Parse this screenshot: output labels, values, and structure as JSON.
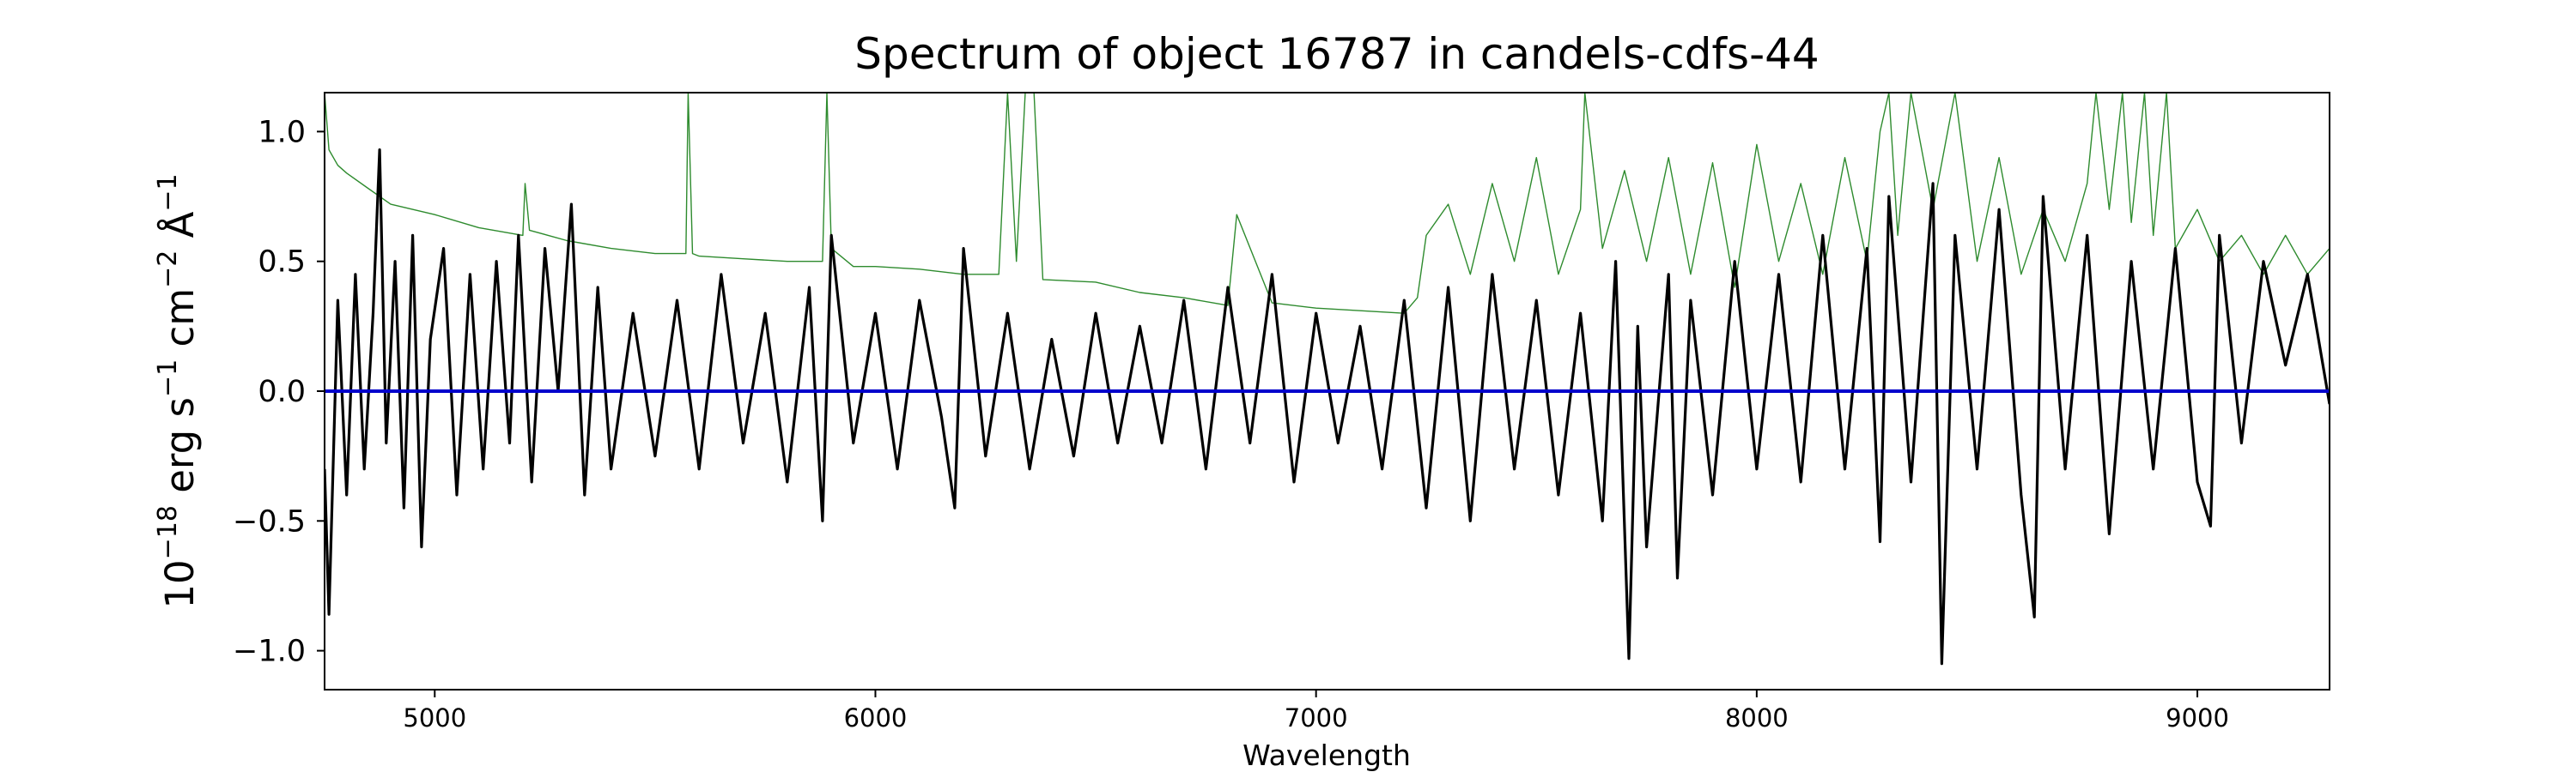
{
  "chart_data": {
    "type": "line",
    "title": "Spectrum of object 16787 in candels-cdfs-44",
    "xlabel": "Wavelength",
    "ylabel": {
      "base": "10",
      "exp1": "−18",
      "unit_erg": " erg s",
      "exp2": "−1",
      "unit_cm": " cm",
      "exp3": "−2",
      "unit_ang": " Å",
      "exp4": "−1"
    },
    "xlim": [
      4750,
      9300
    ],
    "ylim": [
      -1.15,
      1.15
    ],
    "xticks": [
      {
        "value": 5000,
        "label": "5000"
      },
      {
        "value": 6000,
        "label": "6000"
      },
      {
        "value": 7000,
        "label": "7000"
      },
      {
        "value": 8000,
        "label": "8000"
      },
      {
        "value": 9000,
        "label": "9000"
      }
    ],
    "yticks": [
      {
        "value": 1.0,
        "label": "1.0"
      },
      {
        "value": 0.5,
        "label": "0.5"
      },
      {
        "value": 0.0,
        "label": "0.0"
      },
      {
        "value": -0.5,
        "label": "−0.5"
      },
      {
        "value": -1.0,
        "label": "−1.0"
      }
    ],
    "grid": false,
    "legend": "none",
    "colors": {
      "flux": "#000000",
      "noise": "#2e8b2e",
      "zero": "#0000cc"
    },
    "series": [
      {
        "key": "flux",
        "x": [
          4750,
          4760,
          4780,
          4800,
          4820,
          4840,
          4860,
          4875,
          4890,
          4910,
          4930,
          4950,
          4970,
          4990,
          5020,
          5050,
          5080,
          5110,
          5140,
          5170,
          5190,
          5220,
          5250,
          5280,
          5310,
          5340,
          5370,
          5400,
          5450,
          5500,
          5550,
          5600,
          5650,
          5700,
          5750,
          5800,
          5850,
          5880,
          5900,
          5950,
          6000,
          6050,
          6100,
          6150,
          6180,
          6200,
          6250,
          6300,
          6350,
          6400,
          6450,
          6500,
          6550,
          6600,
          6650,
          6700,
          6750,
          6800,
          6850,
          6900,
          6950,
          7000,
          7050,
          7100,
          7150,
          7200,
          7250,
          7300,
          7350,
          7400,
          7450,
          7500,
          7550,
          7600,
          7650,
          7680,
          7710,
          7730,
          7750,
          7800,
          7820,
          7850,
          7900,
          7950,
          8000,
          8050,
          8100,
          8150,
          8200,
          8250,
          8280,
          8300,
          8350,
          8400,
          8420,
          8450,
          8500,
          8550,
          8600,
          8630,
          8650,
          8700,
          8750,
          8800,
          8850,
          8900,
          8950,
          9000,
          9030,
          9050,
          9100,
          9150,
          9200,
          9250,
          9300
        ],
        "y": [
          -0.3,
          -0.86,
          0.35,
          -0.4,
          0.45,
          -0.3,
          0.3,
          0.93,
          -0.2,
          0.5,
          -0.45,
          0.6,
          -0.6,
          0.2,
          0.55,
          -0.4,
          0.45,
          -0.3,
          0.5,
          -0.2,
          0.6,
          -0.35,
          0.55,
          0.0,
          0.72,
          -0.4,
          0.4,
          -0.3,
          0.3,
          -0.25,
          0.35,
          -0.3,
          0.45,
          -0.2,
          0.3,
          -0.35,
          0.4,
          -0.5,
          0.6,
          -0.2,
          0.3,
          -0.3,
          0.35,
          -0.1,
          -0.45,
          0.55,
          -0.25,
          0.3,
          -0.3,
          0.2,
          -0.25,
          0.3,
          -0.2,
          0.25,
          -0.2,
          0.35,
          -0.3,
          0.4,
          -0.2,
          0.45,
          -0.35,
          0.3,
          -0.2,
          0.25,
          -0.3,
          0.35,
          -0.45,
          0.4,
          -0.5,
          0.45,
          -0.3,
          0.35,
          -0.4,
          0.3,
          -0.5,
          0.5,
          -1.03,
          0.25,
          -0.6,
          0.45,
          -0.72,
          0.35,
          -0.4,
          0.5,
          -0.3,
          0.45,
          -0.35,
          0.6,
          -0.3,
          0.55,
          -0.58,
          0.75,
          -0.35,
          0.8,
          -1.05,
          0.6,
          -0.3,
          0.7,
          -0.4,
          -0.87,
          0.75,
          -0.3,
          0.6,
          -0.55,
          0.5,
          -0.3,
          0.55,
          -0.35,
          -0.52,
          0.6,
          -0.2,
          0.5,
          0.1,
          0.45,
          -0.05
        ]
      },
      {
        "key": "noise",
        "x": [
          4750,
          4760,
          4780,
          4800,
          4850,
          4900,
          5000,
          5100,
          5200,
          5205,
          5215,
          5300,
          5400,
          5500,
          5570,
          5575,
          5585,
          5600,
          5700,
          5800,
          5880,
          5890,
          5900,
          5950,
          6000,
          6100,
          6200,
          6280,
          6300,
          6320,
          6340,
          6360,
          6380,
          6500,
          6600,
          6700,
          6800,
          6820,
          6900,
          7000,
          7100,
          7200,
          7230,
          7250,
          7300,
          7350,
          7400,
          7450,
          7500,
          7550,
          7600,
          7610,
          7650,
          7700,
          7750,
          7800,
          7850,
          7900,
          7950,
          8000,
          8050,
          8100,
          8150,
          8200,
          8250,
          8280,
          8300,
          8320,
          8350,
          8400,
          8450,
          8500,
          8550,
          8600,
          8650,
          8700,
          8750,
          8770,
          8800,
          8830,
          8850,
          8880,
          8900,
          8930,
          8950,
          9000,
          9050,
          9100,
          9150,
          9200,
          9250,
          9300
        ],
        "y": [
          1.15,
          0.93,
          0.87,
          0.84,
          0.78,
          0.72,
          0.68,
          0.63,
          0.6,
          0.8,
          0.62,
          0.58,
          0.55,
          0.53,
          0.53,
          1.15,
          0.53,
          0.52,
          0.51,
          0.5,
          0.5,
          1.15,
          0.55,
          0.48,
          0.48,
          0.47,
          0.45,
          0.45,
          1.15,
          0.5,
          1.15,
          1.15,
          0.43,
          0.42,
          0.38,
          0.36,
          0.33,
          0.68,
          0.34,
          0.32,
          0.31,
          0.3,
          0.36,
          0.6,
          0.72,
          0.45,
          0.8,
          0.5,
          0.9,
          0.45,
          0.7,
          1.15,
          0.55,
          0.85,
          0.5,
          0.9,
          0.45,
          0.88,
          0.4,
          0.95,
          0.5,
          0.8,
          0.45,
          0.9,
          0.5,
          1.0,
          1.15,
          0.6,
          1.15,
          0.7,
          1.15,
          0.5,
          0.9,
          0.45,
          0.7,
          0.5,
          0.8,
          1.15,
          0.7,
          1.15,
          0.65,
          1.15,
          0.6,
          1.15,
          0.55,
          0.7,
          0.5,
          0.6,
          0.45,
          0.6,
          0.45,
          0.55
        ]
      },
      {
        "key": "zero",
        "x": [
          4750,
          9300
        ],
        "y": [
          0.0,
          0.0
        ]
      }
    ]
  }
}
